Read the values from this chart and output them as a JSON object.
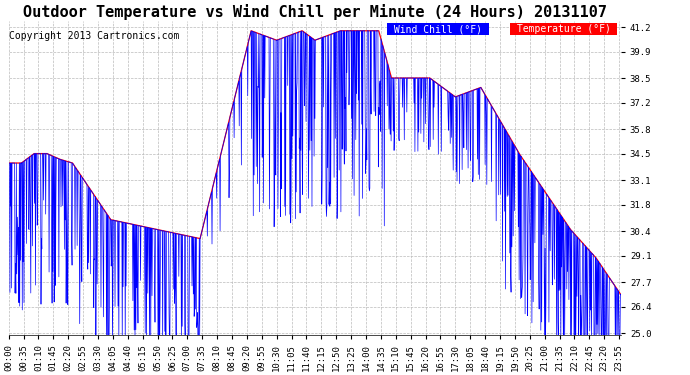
{
  "title": "Outdoor Temperature vs Wind Chill per Minute (24 Hours) 20131107",
  "copyright": "Copyright 2013 Cartronics.com",
  "legend_wind_chill": "Wind Chill (°F)",
  "legend_temperature": "Temperature (°F)",
  "wind_chill_color": "#0000ff",
  "temperature_color": "#ff0000",
  "legend_wind_bg": "#0000ff",
  "legend_temp_bg": "#ff0000",
  "background_color": "#ffffff",
  "grid_color": "#bbbbbb",
  "ylim_min": 25.0,
  "ylim_max": 41.2,
  "yticks": [
    25.0,
    26.4,
    27.7,
    29.1,
    30.4,
    31.8,
    33.1,
    34.5,
    35.8,
    37.2,
    38.5,
    39.9,
    41.2
  ],
  "title_fontsize": 11,
  "copyright_fontsize": 7,
  "tick_fontsize": 6.5,
  "num_minutes": 1440
}
